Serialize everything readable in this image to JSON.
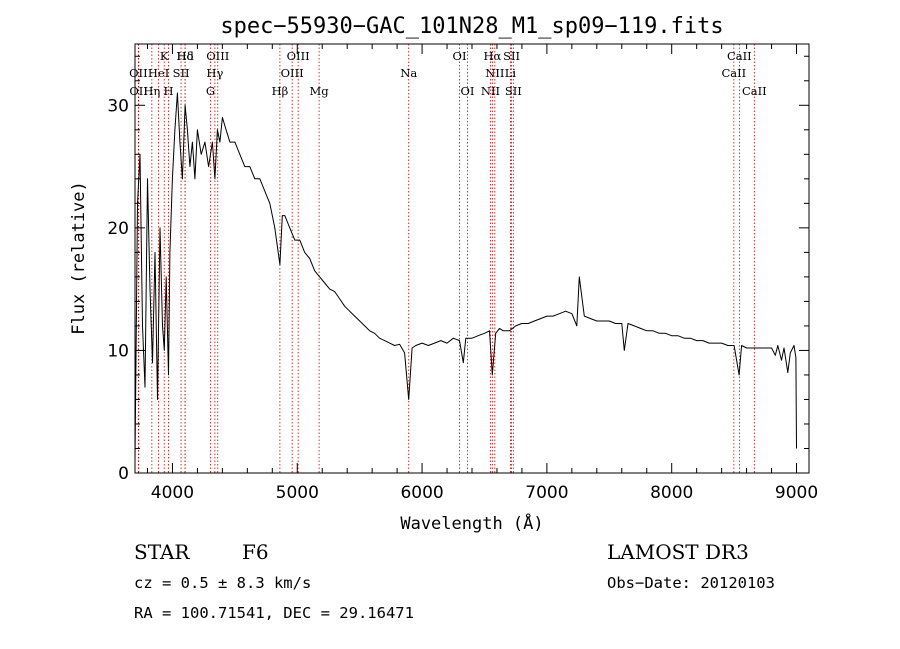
{
  "chart_data": {
    "type": "line",
    "title": "spec−55930−GAC_101N28_M1_sp09−119.fits",
    "xlabel": "Wavelength (Å)",
    "ylabel": "Flux (relative)",
    "xlim": [
      3700,
      9100
    ],
    "ylim": [
      0,
      35
    ],
    "xticks": [
      4000,
      5000,
      6000,
      7000,
      8000,
      9000
    ],
    "yticks": [
      0,
      10,
      20,
      30
    ],
    "series": [
      {
        "name": "flux",
        "x": [
          3700,
          3720,
          3740,
          3760,
          3780,
          3800,
          3820,
          3840,
          3860,
          3880,
          3900,
          3920,
          3935,
          3950,
          3968,
          3980,
          4000,
          4020,
          4040,
          4060,
          4080,
          4101,
          4120,
          4140,
          4160,
          4180,
          4200,
          4230,
          4260,
          4290,
          4320,
          4340,
          4360,
          4380,
          4400,
          4430,
          4460,
          4500,
          4540,
          4580,
          4620,
          4660,
          4700,
          4740,
          4780,
          4820,
          4861,
          4880,
          4900,
          4940,
          4980,
          5020,
          5060,
          5100,
          5140,
          5180,
          5220,
          5260,
          5300,
          5340,
          5380,
          5420,
          5460,
          5500,
          5540,
          5580,
          5620,
          5660,
          5700,
          5740,
          5780,
          5820,
          5860,
          5893,
          5920,
          5950,
          6000,
          6050,
          6100,
          6150,
          6200,
          6250,
          6300,
          6330,
          6350,
          6400,
          6450,
          6500,
          6540,
          6563,
          6590,
          6620,
          6650,
          6700,
          6750,
          6800,
          6850,
          6900,
          6950,
          7000,
          7050,
          7100,
          7150,
          7200,
          7240,
          7260,
          7300,
          7350,
          7400,
          7450,
          7500,
          7550,
          7600,
          7620,
          7650,
          7700,
          7750,
          7800,
          7850,
          7900,
          7950,
          8000,
          8050,
          8100,
          8150,
          8200,
          8250,
          8300,
          8350,
          8400,
          8450,
          8500,
          8540,
          8560,
          8600,
          8650,
          8700,
          8750,
          8800,
          8830,
          8850,
          8880,
          8900,
          8930,
          8950,
          8980,
          8995,
          9000
        ],
        "y": [
          1,
          22,
          26,
          12,
          7,
          24,
          15,
          9,
          18,
          6,
          20,
          12,
          10,
          16,
          8,
          18,
          24,
          28,
          31,
          27,
          24,
          30,
          28,
          25,
          27,
          24,
          28,
          26,
          27,
          25,
          27,
          24,
          28,
          27,
          29,
          28,
          27,
          27,
          26,
          25,
          25,
          24,
          24,
          23,
          22,
          20,
          17,
          21,
          21,
          20,
          19,
          19,
          18,
          17.5,
          16.5,
          16,
          15.5,
          15,
          14.8,
          14.2,
          13.6,
          13.2,
          12.8,
          12.4,
          12,
          11.6,
          11.4,
          11,
          10.8,
          10.6,
          10.4,
          10.5,
          9.8,
          6,
          10.2,
          10.4,
          10.6,
          10.4,
          10.6,
          10.8,
          10.6,
          11,
          10.8,
          9,
          11,
          11,
          11.2,
          11.4,
          11.6,
          8,
          11.4,
          11.8,
          11.6,
          11.6,
          12,
          12.2,
          12.2,
          12.4,
          12.6,
          12.8,
          12.8,
          13,
          13.2,
          13,
          12,
          16,
          12.8,
          12.6,
          12.4,
          12.4,
          12.4,
          12.2,
          12.2,
          10,
          12.2,
          12,
          11.8,
          11.6,
          11.6,
          11.4,
          11.4,
          11.2,
          11.2,
          11,
          11,
          10.8,
          10.8,
          10.6,
          10.6,
          10.6,
          10.4,
          10.4,
          8,
          10.4,
          10.2,
          10.2,
          10.2,
          10.2,
          10.2,
          9.6,
          10.4,
          9.2,
          10.2,
          8.2,
          9.8,
          10.4,
          9.4,
          2
        ]
      }
    ],
    "spectral_lines": [
      {
        "label": "Hδ",
        "x": 4101,
        "row": 1
      },
      {
        "label": "OII",
        "x": 3727,
        "row": 2
      },
      {
        "label": "OII",
        "x": 3729,
        "row": 3
      },
      {
        "label": "K",
        "x": 3934,
        "row": 1
      },
      {
        "label": "HeI",
        "x": 3889,
        "row": 2
      },
      {
        "label": "Hη",
        "x": 3835,
        "row": 3
      },
      {
        "label": "SII",
        "x": 4069,
        "row": 2
      },
      {
        "label": "H",
        "x": 3969,
        "row": 3
      },
      {
        "label": "Hd",
        "x": 4102,
        "row": 1
      },
      {
        "label": "OIII",
        "x": 4363,
        "row": 1
      },
      {
        "label": "Hγ",
        "x": 4340,
        "row": 2
      },
      {
        "label": "G",
        "x": 4305,
        "row": 3
      },
      {
        "label": "OIII",
        "x": 5007,
        "row": 1
      },
      {
        "label": "OIII",
        "x": 4959,
        "row": 2
      },
      {
        "label": "Hβ",
        "x": 4861,
        "row": 3
      },
      {
        "label": "Mg",
        "x": 5175,
        "row": 3
      },
      {
        "label": "Na",
        "x": 5893,
        "row": 2
      },
      {
        "label": "OI",
        "x": 6300,
        "row": 1
      },
      {
        "label": "OI",
        "x": 6364,
        "row": 3
      },
      {
        "label": "Hα",
        "x": 6563,
        "row": 1
      },
      {
        "label": "SII",
        "x": 6717,
        "row": 1
      },
      {
        "label": "NII",
        "x": 6583,
        "row": 2
      },
      {
        "label": "Li",
        "x": 6708,
        "row": 2
      },
      {
        "label": "NII",
        "x": 6548,
        "row": 3
      },
      {
        "label": "SII",
        "x": 6731,
        "row": 3
      },
      {
        "label": "CaII",
        "x": 8542,
        "row": 1
      },
      {
        "label": "CaII",
        "x": 8498,
        "row": 2
      },
      {
        "label": "CaII",
        "x": 8662,
        "row": 3
      }
    ]
  },
  "info": {
    "class": "STAR",
    "subclass": "F6",
    "survey": "LAMOST DR3",
    "cz": "cz = 0.5 ± 8.3 km/s",
    "obs_date": "Obs−Date: 20120103",
    "radec": "RA = 100.71541, DEC =  29.16471"
  },
  "colors": {
    "line": "#000000",
    "marker": "#cc0000",
    "background": "#ffffff"
  }
}
